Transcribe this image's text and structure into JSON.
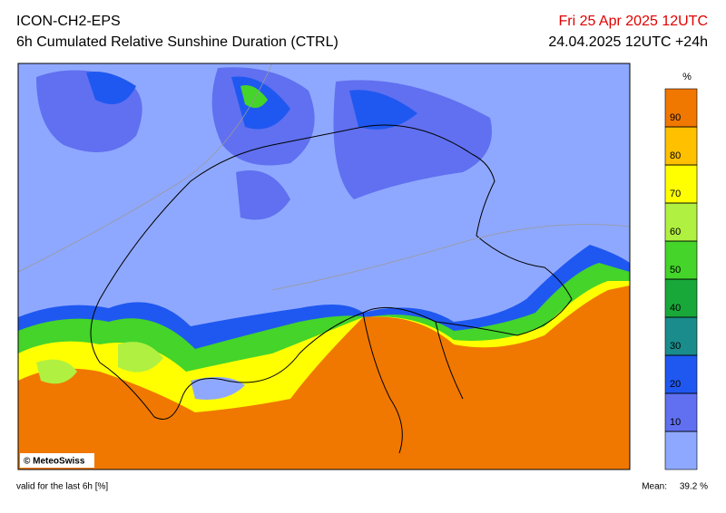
{
  "header": {
    "model": "ICON-CH2-EPS",
    "product": "6h Cumulated Relative Sunshine Duration (CTRL)",
    "valid_time": "Fri 25 Apr 2025 12UTC",
    "run": "24.04.2025 12UTC +24h"
  },
  "colorbar": {
    "unit": "%",
    "lim": [
      0,
      100
    ],
    "ticks": [
      10,
      20,
      30,
      40,
      50,
      60,
      70,
      80,
      90
    ],
    "bounds": [
      0,
      10,
      20,
      30,
      40,
      50,
      60,
      70,
      80,
      90,
      100
    ],
    "colors": [
      "#8fa8ff",
      "#6070f0",
      "#1f58f0",
      "#1a8c8c",
      "#18a83a",
      "#44d42a",
      "#b0f040",
      "#ffff00",
      "#ffc000",
      "#f07800"
    ]
  },
  "map": {
    "credit": "© MeteoSwiss"
  },
  "footer": {
    "note": "valid for the last 6h [%]",
    "mean_label": "Mean:",
    "mean": "39.2 %"
  }
}
